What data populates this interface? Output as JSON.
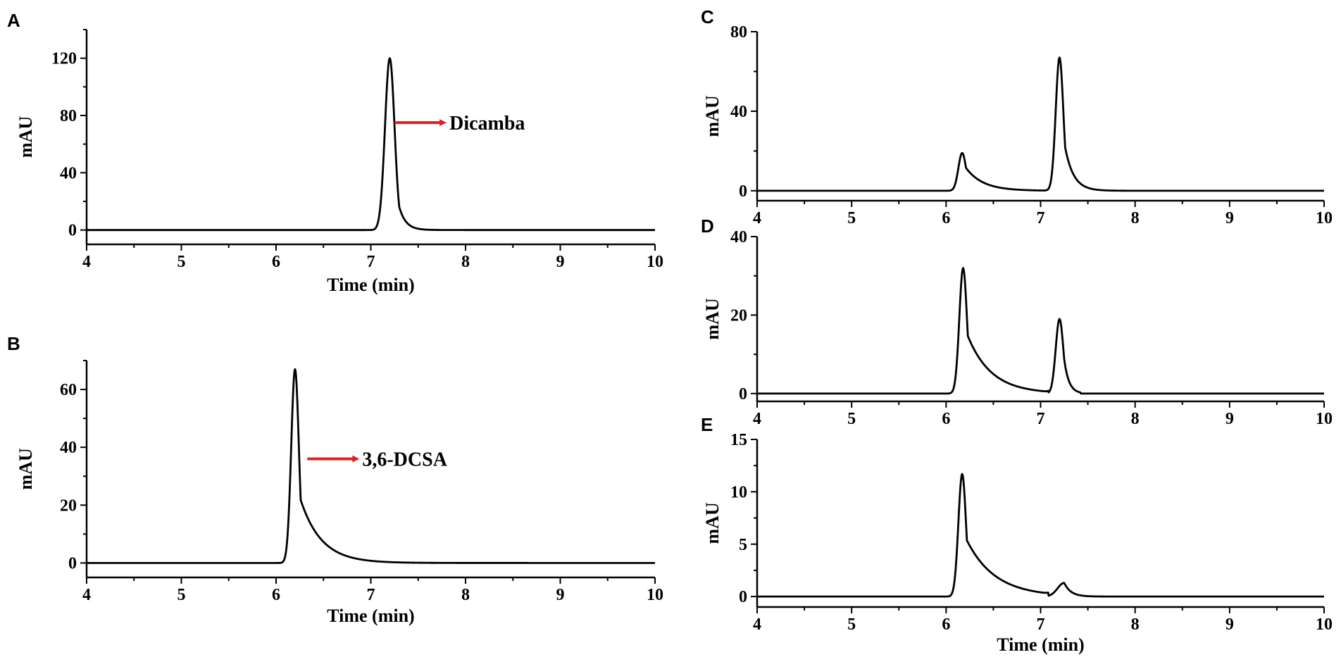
{
  "chart_data": [
    {
      "panel": "A",
      "type": "line",
      "xlabel": "Time (min)",
      "ylabel": "mAU",
      "xlim": [
        4,
        10
      ],
      "ylim": [
        -10,
        140
      ],
      "xticks": [
        4,
        5,
        6,
        7,
        8,
        9,
        10
      ],
      "yticks": [
        0,
        40,
        80,
        120
      ],
      "peaks": [
        {
          "center": 7.2,
          "height": 120,
          "sigma": 0.05,
          "tau": 0.07,
          "delay": 0.1
        }
      ],
      "annotations": [
        {
          "text": "Dicamba",
          "arrow_from_x": 7.25,
          "arrow_to_x": 7.8,
          "y": 75,
          "color": "#e02020"
        }
      ]
    },
    {
      "panel": "B",
      "type": "line",
      "xlabel": "Time (min)",
      "ylabel": "mAU",
      "xlim": [
        4,
        10
      ],
      "ylim": [
        -5,
        70
      ],
      "xticks": [
        4,
        5,
        6,
        7,
        8,
        9,
        10
      ],
      "yticks": [
        0,
        20,
        40,
        60
      ],
      "peaks": [
        {
          "center": 6.2,
          "height": 67,
          "sigma": 0.04,
          "tau": 0.22,
          "delay": 0.06
        }
      ],
      "annotations": [
        {
          "text": "3,6-DCSA",
          "arrow_from_x": 6.33,
          "arrow_to_x": 6.88,
          "y": 36,
          "color": "#e02020"
        }
      ]
    },
    {
      "panel": "C",
      "type": "line",
      "xlabel": "",
      "ylabel": "mAU",
      "xlim": [
        4,
        10
      ],
      "ylim": [
        -5,
        80
      ],
      "xticks": [
        4,
        5,
        6,
        7,
        8,
        9,
        10
      ],
      "yticks": [
        0,
        40,
        80
      ],
      "peaks": [
        {
          "center": 6.17,
          "height": 19,
          "sigma": 0.04,
          "tau": 0.18,
          "delay": 0.04,
          "cutoff": 7.1
        },
        {
          "center": 7.2,
          "height": 67,
          "sigma": 0.04,
          "tau": 0.09,
          "delay": 0.06
        }
      ],
      "annotations": []
    },
    {
      "panel": "D",
      "type": "line",
      "xlabel": "",
      "ylabel": "mAU",
      "xlim": [
        4,
        10
      ],
      "ylim": [
        -2,
        40
      ],
      "xticks": [
        4,
        5,
        6,
        7,
        8,
        9,
        10
      ],
      "yticks": [
        0,
        20,
        40
      ],
      "peaks": [
        {
          "center": 6.18,
          "height": 32,
          "sigma": 0.04,
          "tau": 0.25,
          "delay": 0.05,
          "cutoff": 7.08
        },
        {
          "center": 7.2,
          "height": 19,
          "sigma": 0.04,
          "tau": 0.05,
          "delay": 0.05,
          "cutoff": 7.42
        }
      ],
      "annotations": []
    },
    {
      "panel": "E",
      "type": "line",
      "xlabel": "Time (min)",
      "ylabel": "mAU",
      "xlim": [
        4,
        10
      ],
      "ylim": [
        -1,
        15
      ],
      "xticks": [
        4,
        5,
        6,
        7,
        8,
        9,
        10
      ],
      "yticks": [
        0,
        5,
        10,
        15
      ],
      "peaks": [
        {
          "center": 6.17,
          "height": 11.7,
          "sigma": 0.04,
          "tau": 0.3,
          "delay": 0.05,
          "cutoff": 7.08
        },
        {
          "center": 7.25,
          "height": 1.3,
          "sigma": 0.07,
          "tau": 0.07,
          "delay": 0.0
        }
      ],
      "annotations": []
    }
  ]
}
